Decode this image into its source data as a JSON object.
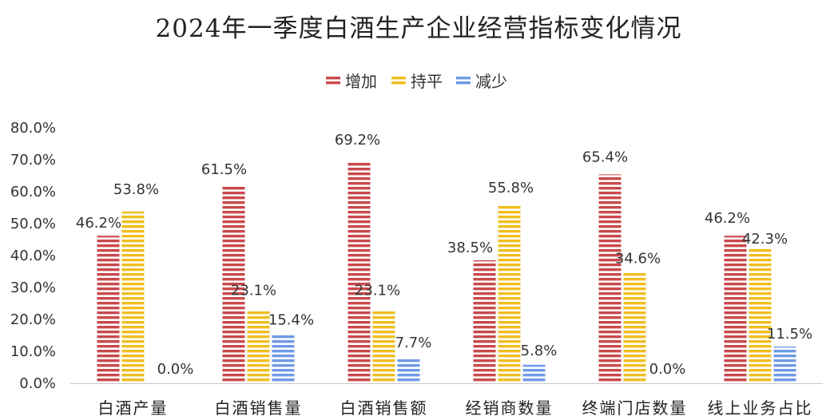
{
  "chart_data": {
    "type": "bar",
    "title": "2024年一季度白酒生产企业经营指标变化情况",
    "categories": [
      "白酒产量",
      "白酒销售量",
      "白酒销售额",
      "经销商数量",
      "终端门店数量",
      "线上业务占比"
    ],
    "series": [
      {
        "name": "增加",
        "color": "#c9494c",
        "values": [
          46.2,
          61.5,
          69.2,
          38.5,
          65.4,
          46.2
        ],
        "labels": [
          "46.2%",
          "61.5%",
          "69.2%",
          "38.5%",
          "65.4%",
          "46.2%"
        ]
      },
      {
        "name": "持平",
        "color": "#f0be1f",
        "values": [
          53.8,
          23.1,
          23.1,
          55.8,
          34.6,
          42.3
        ],
        "labels": [
          "53.8%",
          "23.1%",
          "23.1%",
          "55.8%",
          "34.6%",
          "42.3%"
        ]
      },
      {
        "name": "减少",
        "color": "#6f9ae6",
        "values": [
          0.0,
          15.4,
          7.7,
          5.8,
          0.0,
          11.5
        ],
        "labels": [
          "0.0%",
          "15.4%",
          "7.7%",
          "5.8%",
          "0.0%",
          "11.5%"
        ]
      }
    ],
    "yticks": [
      "0.0%",
      "10.0%",
      "20.0%",
      "30.0%",
      "40.0%",
      "50.0%",
      "60.0%",
      "70.0%",
      "80.0%"
    ],
    "ylim": [
      0,
      80
    ],
    "legend_position": "top-center",
    "grid": false
  }
}
